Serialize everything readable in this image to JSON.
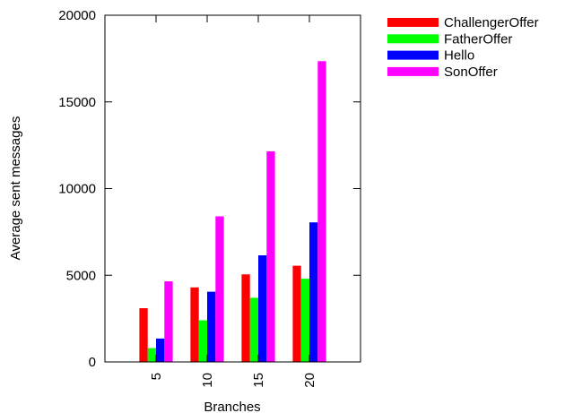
{
  "chart_data": {
    "type": "bar",
    "xlabel": "Branches",
    "ylabel": "Average sent messages",
    "categories": [
      "5",
      "10",
      "15",
      "20"
    ],
    "ylim": [
      0,
      20000
    ],
    "yticks": [
      0,
      5000,
      10000,
      15000,
      20000
    ],
    "grid": false,
    "legend_position": "outside-right",
    "series": [
      {
        "name": "ChallengerOffer",
        "color": "#ff0000",
        "values": [
          3100,
          4300,
          5050,
          5550
        ]
      },
      {
        "name": "FatherOffer",
        "color": "#00ff00",
        "values": [
          800,
          2400,
          3700,
          4800
        ]
      },
      {
        "name": "Hello",
        "color": "#0000ff",
        "values": [
          1350,
          4050,
          6150,
          8050
        ]
      },
      {
        "name": "SonOffer",
        "color": "#ff00ff",
        "values": [
          4650,
          8400,
          12150,
          17350
        ]
      }
    ]
  }
}
